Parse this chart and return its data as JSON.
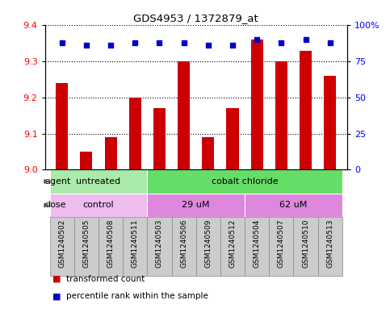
{
  "title": "GDS4953 / 1372879_at",
  "samples": [
    "GSM1240502",
    "GSM1240505",
    "GSM1240508",
    "GSM1240511",
    "GSM1240503",
    "GSM1240506",
    "GSM1240509",
    "GSM1240512",
    "GSM1240504",
    "GSM1240507",
    "GSM1240510",
    "GSM1240513"
  ],
  "bar_values": [
    9.24,
    9.05,
    9.09,
    9.2,
    9.17,
    9.3,
    9.09,
    9.17,
    9.36,
    9.3,
    9.33,
    9.26
  ],
  "percentile_values": [
    88,
    86,
    86,
    88,
    88,
    88,
    86,
    86,
    90,
    88,
    90,
    88
  ],
  "ylim_left": [
    9.0,
    9.4
  ],
  "ylim_right": [
    0,
    100
  ],
  "yticks_left": [
    9.0,
    9.1,
    9.2,
    9.3,
    9.4
  ],
  "yticks_right": [
    0,
    25,
    50,
    75,
    100
  ],
  "ytick_right_labels": [
    "0",
    "25",
    "50",
    "75",
    "100%"
  ],
  "bar_color": "#cc0000",
  "dot_color": "#0000cc",
  "bar_bottom": 9.0,
  "agent_groups": [
    {
      "label": "untreated",
      "start": 0,
      "end": 4,
      "color": "#aaeaaa"
    },
    {
      "label": "cobalt chloride",
      "start": 4,
      "end": 12,
      "color": "#66dd66"
    }
  ],
  "dose_groups": [
    {
      "label": "control",
      "start": 0,
      "end": 4,
      "color": "#eebcee"
    },
    {
      "label": "29 uM",
      "start": 4,
      "end": 8,
      "color": "#dd88dd"
    },
    {
      "label": "62 uM",
      "start": 8,
      "end": 12,
      "color": "#dd88dd"
    }
  ],
  "legend_items": [
    {
      "label": "transformed count",
      "color": "#cc0000"
    },
    {
      "label": "percentile rank within the sample",
      "color": "#0000cc"
    }
  ],
  "sample_box_color": "#cccccc",
  "sample_box_edge": "#888888",
  "grid_linestyle": "dotted",
  "background_color": "#ffffff"
}
